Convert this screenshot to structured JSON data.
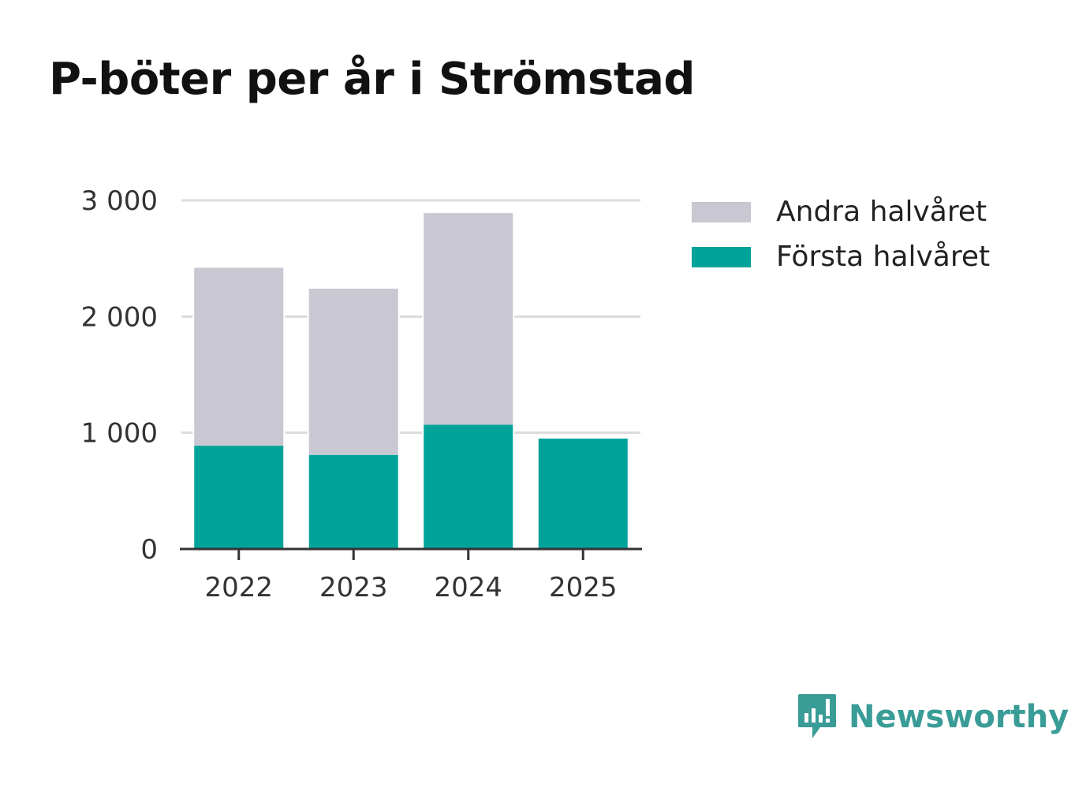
{
  "chart_data": {
    "type": "bar",
    "stacked": true,
    "title": "P-böter per år i Strömstad",
    "categories": [
      "2022",
      "2023",
      "2024",
      "2025"
    ],
    "series": [
      {
        "name": "Första halvåret",
        "color": "#00a39a",
        "values": [
          890,
          810,
          1070,
          950
        ]
      },
      {
        "name": "Andra halvåret",
        "color": "#c8c7d2",
        "values": [
          1530,
          1430,
          1820,
          0
        ]
      }
    ],
    "ylim": [
      0,
      3000
    ],
    "yticks": [
      0,
      1000,
      2000,
      3000
    ],
    "ytick_labels": [
      "0",
      "1 000",
      "2 000",
      "3 000"
    ],
    "xlabel": "",
    "ylabel": "",
    "grid": true,
    "legend_position": "right"
  },
  "legend": {
    "items": [
      {
        "label": "Andra halvåret",
        "color": "#c8c7d2"
      },
      {
        "label": "Första halvåret",
        "color": "#00a39a"
      }
    ]
  },
  "brand": {
    "name": "Newsworthy",
    "color": "#3a9c96",
    "icon": "newsworthy-logo-icon"
  }
}
